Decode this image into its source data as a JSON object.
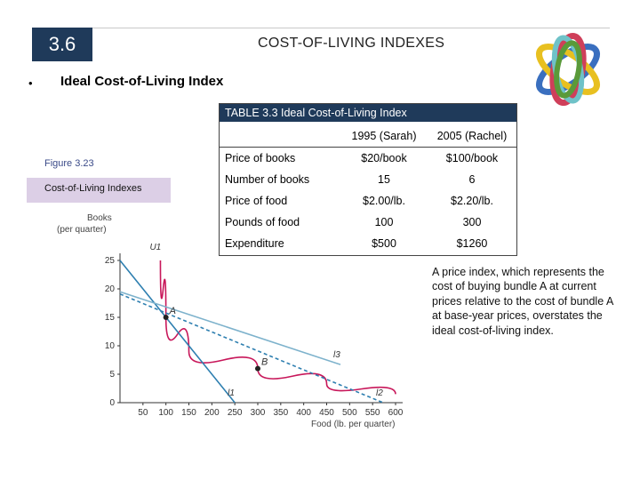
{
  "slide": {
    "number": "3.6",
    "title": "COST-OF-LIVING INDEXES",
    "bullet": "•",
    "bullet_text": "Ideal Cost-of-Living Index"
  },
  "figure": {
    "label": "Figure 3.23",
    "caption": "Cost-of-Living Indexes"
  },
  "table": {
    "title": "TABLE 3.3 Ideal Cost-of-Living Index",
    "col1": "1995 (Sarah)",
    "col2": "2005 (Rachel)",
    "rows": [
      {
        "label": "Price of books",
        "v1": "$20/book",
        "v2": "$100/book"
      },
      {
        "label": "Number of books",
        "v1": "15",
        "v2": "6"
      },
      {
        "label": "Price of food",
        "v1": "$2.00/lb.",
        "v2": "$2.20/lb."
      },
      {
        "label": "Pounds of food",
        "v1": "100",
        "v2": "300"
      },
      {
        "label": "Expenditure",
        "v1": "$500",
        "v2": "$1260"
      }
    ]
  },
  "note": "A price index, which represents the cost of buying bundle A at current prices relative to the cost of bundle A at base-year prices, overstates the ideal cost-of-living index.",
  "chart_data": {
    "type": "line",
    "ylabel": "Books (per quarter)",
    "xlabel": "Food (lb. per quarter)",
    "xlim": [
      0,
      600
    ],
    "ylim": [
      0,
      25
    ],
    "x_ticks": [
      50,
      100,
      150,
      200,
      250,
      300,
      350,
      400,
      450,
      500,
      550,
      600
    ],
    "y_ticks": [
      0,
      5,
      10,
      15,
      20,
      25
    ],
    "series": [
      {
        "name": "U1",
        "type": "curve",
        "points": [
          [
            88,
            25
          ],
          [
            100,
            15
          ],
          [
            150,
            9
          ],
          [
            300,
            6
          ],
          [
            450,
            3.3
          ],
          [
            600,
            1.5
          ]
        ]
      },
      {
        "name": "l1",
        "type": "line",
        "points": [
          [
            0,
            25
          ],
          [
            250,
            0
          ]
        ]
      },
      {
        "name": "l2",
        "type": "line",
        "points": [
          [
            0,
            19.1
          ],
          [
            573,
            0
          ]
        ]
      },
      {
        "name": "l3",
        "type": "line",
        "points": [
          [
            0,
            19.5
          ],
          [
            480,
            6.7
          ]
        ]
      }
    ],
    "points": [
      {
        "label": "A",
        "x": 100,
        "y": 15
      },
      {
        "label": "B",
        "x": 300,
        "y": 6
      }
    ]
  },
  "colors": {
    "accent": "#1f3a5a",
    "caption_bg": "#dccfe6",
    "curve": "#c8175a",
    "line_dark": "#2e7fb0",
    "line_light": "#7db2cc"
  }
}
